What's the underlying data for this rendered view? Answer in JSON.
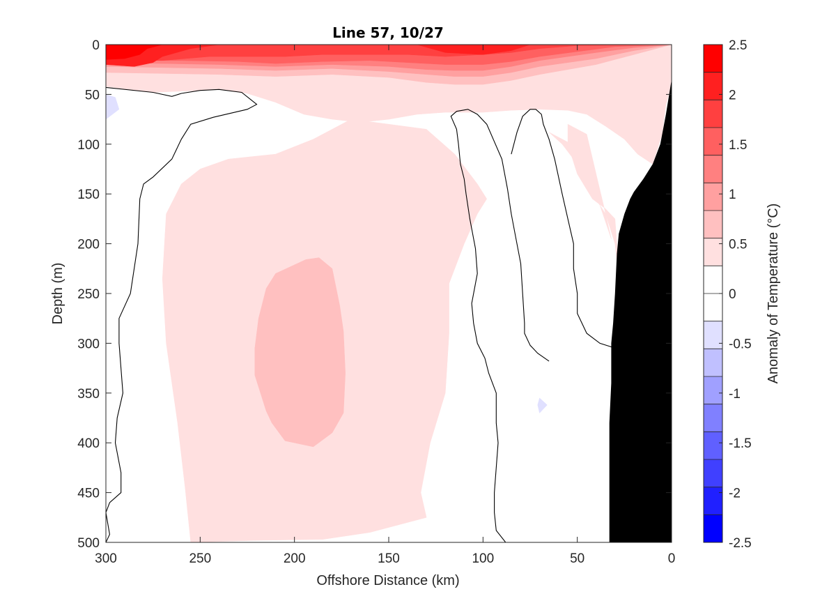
{
  "chart_data": {
    "type": "contour",
    "title": "Line 57, 10/27",
    "xlabel": "Offshore Distance (km)",
    "ylabel": "Depth (m)",
    "colorbar_label": "Anomaly of Temperature (°C)",
    "xlim": [
      300,
      0
    ],
    "ylim": [
      0,
      500
    ],
    "x_reversed": true,
    "y_reversed": true,
    "xticks": [
      300,
      250,
      200,
      150,
      100,
      50,
      0
    ],
    "xtick_labels": [
      "300",
      "250",
      "200",
      "150",
      "100",
      "50",
      "0"
    ],
    "yticks": [
      0,
      50,
      100,
      150,
      200,
      250,
      300,
      350,
      400,
      450,
      500
    ],
    "ytick_labels": [
      "0",
      "50",
      "100",
      "150",
      "200",
      "250",
      "300",
      "350",
      "400",
      "450",
      "500"
    ],
    "colorbar": {
      "min": -2.5,
      "max": 2.5,
      "step": 0.25,
      "ticks": [
        2.5,
        2,
        1.5,
        1,
        0.5,
        0,
        -0.5,
        -1,
        -1.5,
        -2,
        -2.5
      ],
      "tick_labels": [
        "2.5",
        "2",
        "1.5",
        "1",
        "0.5",
        "0",
        "-0.5",
        "-1",
        "-1.5",
        "-2",
        "-2.5"
      ],
      "colors": [
        "#ff0000",
        "#ff2020",
        "#ff4040",
        "#ff6060",
        "#ff8080",
        "#ffa0a0",
        "#ffc0c0",
        "#ffe0e0",
        "#ffffff",
        "#ffffff",
        "#e0e0ff",
        "#c0c0ff",
        "#a0a0ff",
        "#8080ff",
        "#6060ff",
        "#4040ff",
        "#2020ff",
        "#0000ff"
      ]
    },
    "fill_regions": [
      {
        "level": 0.25,
        "color": "#ffe0e0",
        "points": [
          [
            300,
            42
          ],
          [
            275,
            48
          ],
          [
            250,
            46
          ],
          [
            240,
            45
          ],
          [
            225,
            49
          ],
          [
            210,
            58
          ],
          [
            195,
            70
          ],
          [
            180,
            75
          ],
          [
            165,
            78
          ],
          [
            150,
            75
          ],
          [
            135,
            70
          ],
          [
            120,
            68
          ],
          [
            100,
            68
          ],
          [
            85,
            66
          ],
          [
            70,
            65
          ],
          [
            55,
            66
          ],
          [
            45,
            70
          ],
          [
            35,
            82
          ],
          [
            25,
            95
          ],
          [
            18,
            110
          ],
          [
            10,
            120
          ],
          [
            5,
            90
          ],
          [
            3,
            60
          ],
          [
            0,
            40
          ],
          [
            0,
            0
          ],
          [
            300,
            0
          ]
        ]
      },
      {
        "level": 0.25,
        "color": "#ffe0e0",
        "points": [
          [
            170,
            75
          ],
          [
            150,
            80
          ],
          [
            130,
            85
          ],
          [
            115,
            110
          ],
          [
            103,
            140
          ],
          [
            98,
            155
          ],
          [
            103,
            170
          ],
          [
            110,
            200
          ],
          [
            118,
            240
          ],
          [
            118,
            290
          ],
          [
            120,
            350
          ],
          [
            128,
            400
          ],
          [
            133,
            450
          ],
          [
            130,
            475
          ],
          [
            160,
            490
          ],
          [
            185,
            497
          ],
          [
            220,
            498
          ],
          [
            255,
            500
          ],
          [
            258,
            445
          ],
          [
            262,
            380
          ],
          [
            268,
            300
          ],
          [
            270,
            235
          ],
          [
            268,
            170
          ],
          [
            260,
            140
          ],
          [
            250,
            125
          ],
          [
            235,
            115
          ],
          [
            210,
            110
          ],
          [
            190,
            95
          ]
        ]
      },
      {
        "level": 0.25,
        "color": "#ffe0e0",
        "points": [
          [
            55,
            80
          ],
          [
            45,
            90
          ],
          [
            40,
            130
          ],
          [
            35,
            170
          ],
          [
            30,
            200
          ],
          [
            27,
            250
          ],
          [
            30,
            175
          ],
          [
            35,
            165
          ],
          [
            42,
            155
          ],
          [
            50,
            130
          ],
          [
            55,
            100
          ]
        ]
      },
      {
        "level": 0.25,
        "color": "#ffe0e0",
        "points": [
          [
            65,
            88
          ],
          [
            55,
            98
          ],
          [
            46,
            115
          ],
          [
            40,
            150
          ],
          [
            32,
            195
          ],
          [
            35,
            170
          ],
          [
            42,
            150
          ],
          [
            50,
            120
          ],
          [
            58,
            100
          ]
        ]
      },
      {
        "level": 0.5,
        "color": "#ffc0c0",
        "points": [
          [
            194,
            216
          ],
          [
            187,
            214
          ],
          [
            180,
            225
          ],
          [
            176,
            262
          ],
          [
            174,
            288
          ],
          [
            173,
            330
          ],
          [
            174,
            370
          ],
          [
            180,
            390
          ],
          [
            190,
            404
          ],
          [
            205,
            398
          ],
          [
            212,
            380
          ],
          [
            215,
            368
          ],
          [
            221,
            332
          ],
          [
            221,
            305
          ],
          [
            219,
            275
          ],
          [
            215,
            245
          ],
          [
            210,
            230
          ]
        ]
      },
      {
        "level": 0.5,
        "color": "#ffc0c0",
        "points": [
          [
            300,
            0
          ],
          [
            300,
            28
          ],
          [
            240,
            30
          ],
          [
            210,
            32
          ],
          [
            180,
            30
          ],
          [
            150,
            33
          ],
          [
            130,
            38
          ],
          [
            115,
            40
          ],
          [
            100,
            40
          ],
          [
            85,
            36
          ],
          [
            70,
            30
          ],
          [
            55,
            25
          ],
          [
            40,
            20
          ],
          [
            30,
            15
          ],
          [
            20,
            10
          ],
          [
            10,
            5
          ],
          [
            0,
            0
          ]
        ]
      },
      {
        "level": 0.75,
        "color": "#ffa0a0",
        "points": [
          [
            300,
            0
          ],
          [
            300,
            22
          ],
          [
            240,
            24
          ],
          [
            210,
            26
          ],
          [
            180,
            24
          ],
          [
            150,
            27
          ],
          [
            130,
            30
          ],
          [
            115,
            32
          ],
          [
            100,
            32
          ],
          [
            85,
            28
          ],
          [
            70,
            22
          ],
          [
            55,
            18
          ],
          [
            40,
            14
          ],
          [
            30,
            10
          ],
          [
            20,
            6
          ],
          [
            0,
            0
          ]
        ]
      },
      {
        "level": 1.0,
        "color": "#ff8080",
        "points": [
          [
            300,
            0
          ],
          [
            300,
            18
          ],
          [
            240,
            20
          ],
          [
            210,
            22
          ],
          [
            180,
            20
          ],
          [
            150,
            22
          ],
          [
            130,
            25
          ],
          [
            115,
            26
          ],
          [
            100,
            26
          ],
          [
            85,
            22
          ],
          [
            70,
            16
          ],
          [
            55,
            12
          ],
          [
            40,
            8
          ],
          [
            20,
            3
          ],
          [
            0,
            0
          ]
        ]
      },
      {
        "level": 1.5,
        "color": "#ff6060",
        "points": [
          [
            300,
            0
          ],
          [
            300,
            16
          ],
          [
            260,
            16
          ],
          [
            230,
            17
          ],
          [
            210,
            19
          ],
          [
            185,
            17
          ],
          [
            160,
            16
          ],
          [
            140,
            18
          ],
          [
            120,
            20
          ],
          [
            100,
            20
          ],
          [
            85,
            17
          ],
          [
            70,
            12
          ],
          [
            50,
            7
          ],
          [
            30,
            2
          ],
          [
            0,
            0
          ]
        ]
      },
      {
        "level": 1.75,
        "color": "#ff4040",
        "points": [
          [
            300,
            0
          ],
          [
            300,
            16
          ],
          [
            270,
            16
          ],
          [
            245,
            12
          ],
          [
            225,
            12
          ],
          [
            205,
            12
          ],
          [
            185,
            10
          ],
          [
            160,
            10
          ],
          [
            140,
            10
          ],
          [
            120,
            12
          ],
          [
            100,
            10
          ],
          [
            85,
            8
          ],
          [
            70,
            4
          ],
          [
            50,
            1
          ],
          [
            0,
            0
          ]
        ]
      },
      {
        "level": 2.0,
        "color": "#ff2020",
        "points": [
          [
            300,
            0
          ],
          [
            300,
            20
          ],
          [
            285,
            22
          ],
          [
            275,
            18
          ],
          [
            270,
            12
          ],
          [
            255,
            4
          ],
          [
            240,
            0
          ]
        ]
      },
      {
        "level": 2.0,
        "color": "#ff2020",
        "points": [
          [
            135,
            0
          ],
          [
            120,
            8
          ],
          [
            100,
            10
          ],
          [
            85,
            6
          ],
          [
            75,
            0
          ]
        ]
      },
      {
        "level": 2.25,
        "color": "#ff0000",
        "points": [
          [
            300,
            0
          ],
          [
            300,
            15
          ],
          [
            290,
            14
          ],
          [
            282,
            10
          ],
          [
            278,
            4
          ],
          [
            270,
            0
          ]
        ]
      },
      {
        "level": -0.25,
        "color": "#e0e0ff",
        "points": [
          [
            300,
            50
          ],
          [
            295,
            53
          ],
          [
            293,
            65
          ],
          [
            300,
            75
          ]
        ]
      },
      {
        "level": -0.25,
        "color": "#e0e0ff",
        "points": [
          [
            70,
            355
          ],
          [
            66,
            362
          ],
          [
            70,
            370
          ],
          [
            71,
            362
          ]
        ]
      }
    ],
    "contour_lines": [
      {
        "level": 0,
        "points": [
          [
            300,
            43
          ],
          [
            275,
            48
          ],
          [
            265,
            52
          ],
          [
            260,
            49
          ],
          [
            250,
            46
          ],
          [
            240,
            45
          ],
          [
            228,
            48
          ],
          [
            220,
            60
          ],
          [
            225,
            65
          ],
          [
            243,
            73
          ],
          [
            255,
            80
          ],
          [
            260,
            95
          ],
          [
            265,
            115
          ],
          [
            275,
            133
          ],
          [
            280,
            140
          ],
          [
            282,
            155
          ],
          [
            283,
            200
          ],
          [
            287,
            250
          ],
          [
            293,
            275
          ],
          [
            293,
            300
          ],
          [
            291,
            350
          ],
          [
            294,
            375
          ],
          [
            295,
            400
          ],
          [
            292,
            430
          ],
          [
            292,
            450
          ],
          [
            298,
            460
          ],
          [
            300,
            470
          ],
          [
            298,
            492
          ],
          [
            300,
            500
          ]
        ]
      },
      {
        "level": 0,
        "points": [
          [
            88,
            500
          ],
          [
            93,
            488
          ],
          [
            94,
            470
          ],
          [
            94,
            450
          ],
          [
            92,
            400
          ],
          [
            93,
            380
          ],
          [
            93,
            350
          ],
          [
            97,
            330
          ],
          [
            99,
            315
          ],
          [
            103,
            300
          ],
          [
            105,
            280
          ],
          [
            106,
            260
          ],
          [
            103,
            230
          ],
          [
            104,
            205
          ],
          [
            107,
            175
          ],
          [
            109,
            150
          ],
          [
            110,
            135
          ],
          [
            112,
            120
          ],
          [
            113,
            100
          ],
          [
            114,
            85
          ],
          [
            117,
            72
          ],
          [
            114,
            67
          ],
          [
            108,
            65
          ],
          [
            103,
            70
          ],
          [
            98,
            80
          ],
          [
            90,
            115
          ],
          [
            87,
            145
          ],
          [
            85,
            170
          ],
          [
            83,
            190
          ],
          [
            80,
            220
          ],
          [
            79,
            250
          ],
          [
            78,
            280
          ],
          [
            78,
            290
          ],
          [
            75,
            302
          ],
          [
            71,
            310
          ],
          [
            65,
            318
          ]
        ]
      },
      {
        "level": 0,
        "points": [
          [
            28,
            306
          ],
          [
            38,
            300
          ],
          [
            45,
            290
          ],
          [
            50,
            270
          ],
          [
            50,
            250
          ],
          [
            52,
            225
          ],
          [
            52,
            200
          ],
          [
            55,
            175
          ],
          [
            58,
            150
          ],
          [
            62,
            115
          ],
          [
            65,
            95
          ],
          [
            68,
            80
          ],
          [
            69,
            70
          ],
          [
            72,
            65
          ],
          [
            75,
            65
          ],
          [
            79,
            72
          ],
          [
            82,
            88
          ],
          [
            85,
            110
          ]
        ]
      }
    ],
    "land_polygon": [
      [
        0,
        35
      ],
      [
        3,
        70
      ],
      [
        6,
        100
      ],
      [
        10,
        120
      ],
      [
        15,
        135
      ],
      [
        20,
        148
      ],
      [
        22,
        155
      ],
      [
        25,
        170
      ],
      [
        28,
        190
      ],
      [
        29,
        210
      ],
      [
        30,
        250
      ],
      [
        31,
        280
      ],
      [
        32,
        300
      ],
      [
        32,
        340
      ],
      [
        33,
        380
      ],
      [
        33,
        420
      ],
      [
        33,
        460
      ],
      [
        33,
        500
      ],
      [
        0,
        500
      ]
    ]
  }
}
